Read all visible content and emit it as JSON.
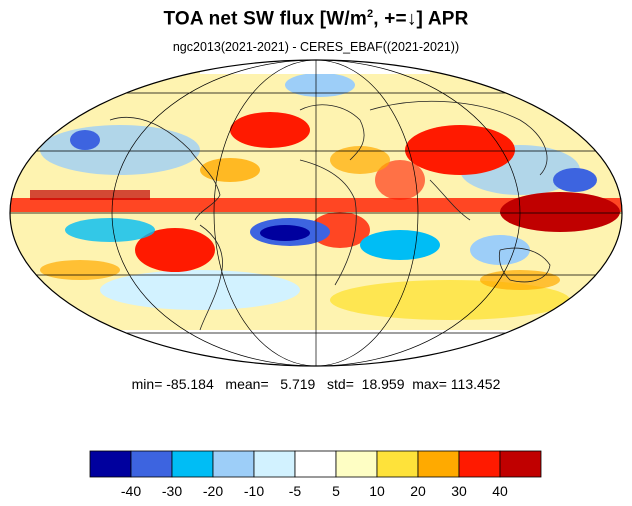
{
  "title": {
    "prefix": "TOA net SW flux [W/m",
    "superscript": "2",
    "suffix": ", +=↓]  APR"
  },
  "subtitle": "ngc2013(2021-2021) - CERES_EBAF((2021-2021))",
  "stats": {
    "min_label": "min=",
    "min": "-85.184",
    "mean_label": "mean=",
    "mean": "5.719",
    "std_label": "std=",
    "std": "18.959",
    "max_label": "max=",
    "max": "113.452"
  },
  "colorbar": {
    "colors": [
      "#00009e",
      "#3d64e0",
      "#00bdf5",
      "#9dcef8",
      "#d2f2ff",
      "#ffffff",
      "#fefec4",
      "#fee23a",
      "#ffaa00",
      "#ff1a00",
      "#c00000"
    ],
    "tick_labels": [
      "-40",
      "-30",
      "-20",
      "-10",
      "-5",
      "5",
      "10",
      "20",
      "30",
      "40"
    ]
  }
}
